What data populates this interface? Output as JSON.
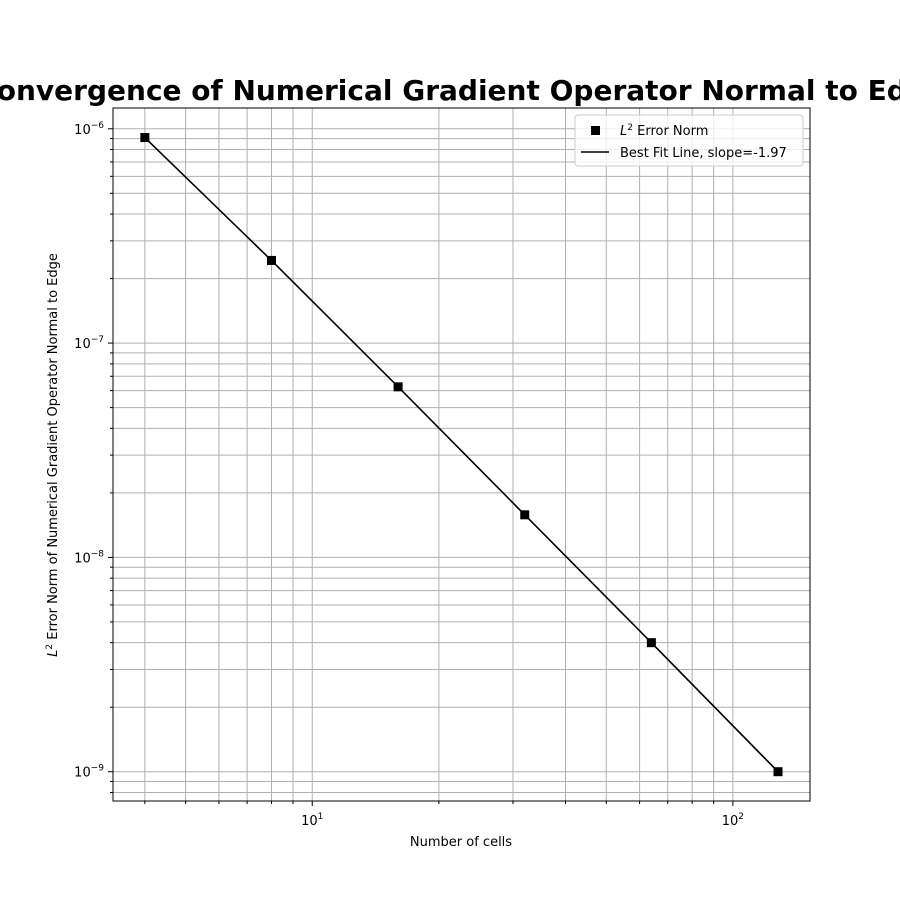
{
  "chart_data": {
    "type": "line",
    "title": "Convergence of Numerical Gradient Operator Normal to Edge",
    "xlabel": "Number of cells",
    "ylabel": "$L^2$ Error Norm of Numerical Gradient Operator Normal to Edge",
    "xscale": "log",
    "yscale": "log",
    "xlim": [
      3.36,
      152.5
    ],
    "ylim": [
      7.3e-10,
      1.25e-06
    ],
    "grid": true,
    "legend_position": "top-right",
    "x_tick_labels": [
      {
        "value": 10,
        "base": "10",
        "exp": "1"
      },
      {
        "value": 100,
        "base": "10",
        "exp": "2"
      }
    ],
    "y_tick_labels": [
      {
        "value": 1e-09,
        "base": "10",
        "exp": "−9"
      },
      {
        "value": 1e-08,
        "base": "10",
        "exp": "−8"
      },
      {
        "value": 1e-07,
        "base": "10",
        "exp": "−7"
      },
      {
        "value": 1e-06,
        "base": "10",
        "exp": "−6"
      }
    ],
    "series": [
      {
        "name": "L2 Error Norm",
        "legend_base": "L",
        "legend_sup": "2",
        "legend_rest": " Error Norm",
        "kind": "scatter",
        "marker": "square",
        "color": "#000000",
        "x": [
          4,
          8,
          16,
          32,
          64,
          128
        ],
        "y": [
          9.1e-07,
          2.43e-07,
          6.25e-08,
          1.58e-08,
          4e-09,
          1e-09
        ]
      },
      {
        "name": "Best Fit Line, slope=-1.97",
        "kind": "line",
        "color": "#000000",
        "x": [
          4,
          8,
          16,
          32,
          64,
          128
        ],
        "y": [
          9.1e-07,
          2.43e-07,
          6.25e-08,
          1.58e-08,
          4e-09,
          1e-09
        ]
      }
    ]
  }
}
